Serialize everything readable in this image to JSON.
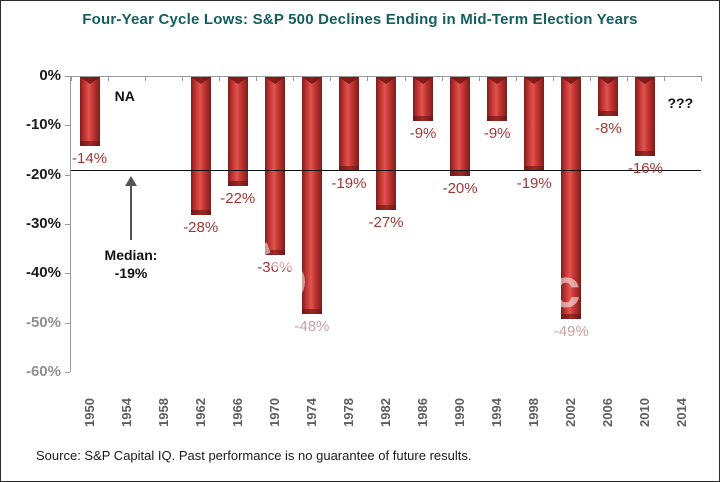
{
  "title": "Four-Year Cycle Lows: S&P 500 Declines Ending in Mid-Term Election Years",
  "source": "Source: S&P Capital IQ. Past performance is no guarantee of future results.",
  "watermark_text": "photobucket",
  "colors": {
    "title_teal": "#155e5e",
    "bar_red": "#c0302c",
    "bar_edge_red": "#7c1d1b",
    "bar_label_red": "#9d3734",
    "bar_label_muted": "#c7a29f",
    "axis_gray": "#9a9a9a",
    "median_black": "#111111"
  },
  "chart_data": {
    "type": "bar",
    "title": "Four-Year Cycle Lows: S&P 500 Declines Ending in Mid-Term Election Years",
    "categories": [
      "1950",
      "1954",
      "1958",
      "1962",
      "1966",
      "1970",
      "1974",
      "1978",
      "1982",
      "1986",
      "1990",
      "1994",
      "1998",
      "2002",
      "2006",
      "2010",
      "2014"
    ],
    "values": [
      -14,
      null,
      null,
      -28,
      -22,
      -36,
      -48,
      -19,
      -27,
      -9,
      -20,
      -9,
      -19,
      -49,
      -8,
      -16,
      null
    ],
    "bar_labels": [
      "-14%",
      "",
      "",
      "-28%",
      "-22%",
      "-36%",
      "-48%",
      "-19%",
      "-27%",
      "-9%",
      "-20%",
      "-9%",
      "-19%",
      "-49%",
      "-8%",
      "-16%",
      ""
    ],
    "muted_label_indices": [
      6,
      13
    ],
    "ylim": [
      -60,
      0
    ],
    "ytick_labels": [
      "0%",
      "-10%",
      "-20%",
      "-30%",
      "-40%",
      "-50%",
      "-60%"
    ],
    "dim_ytick_indices": [
      5,
      6
    ],
    "grid": false,
    "legend": false,
    "annotations": {
      "na": {
        "index": 1,
        "label": "NA"
      },
      "unknown": {
        "index": 16,
        "label": "???"
      },
      "median": {
        "value": -19,
        "line1": "Median:",
        "line2": "-19%"
      }
    }
  }
}
